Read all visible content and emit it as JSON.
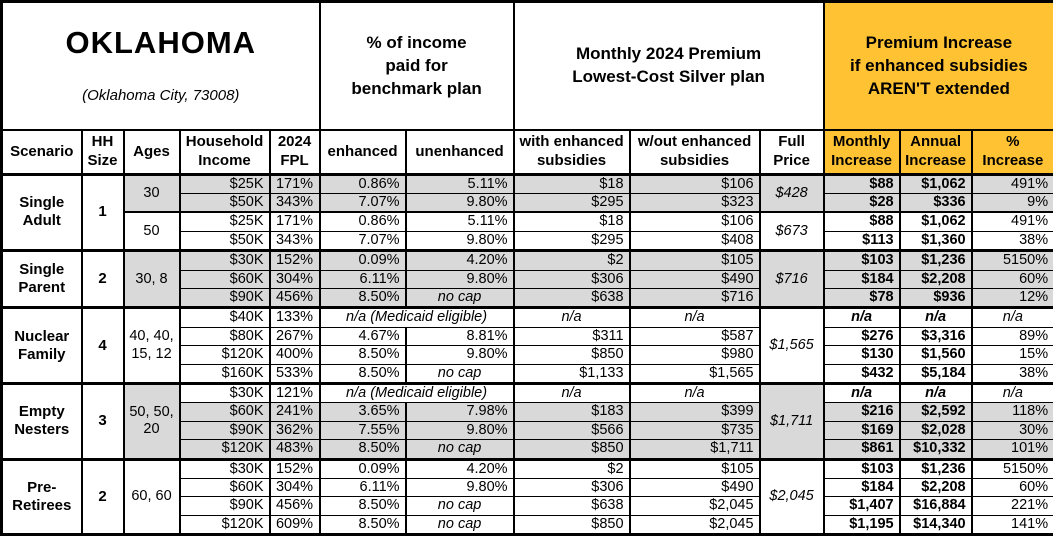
{
  "title": {
    "state": "OKLAHOMA",
    "city": "(Oklahoma City, 73008)"
  },
  "header_groups": {
    "benchmark": [
      "% of income",
      "paid for",
      "benchmark plan"
    ],
    "premium": [
      "Monthly 2024 Premium",
      "Lowest-Cost Silver plan"
    ],
    "increase": [
      "Premium Increase",
      "if enhanced subsidies",
      "AREN'T extended"
    ]
  },
  "columns": [
    "Scenario",
    [
      "HH",
      "Size"
    ],
    "Ages",
    [
      "Household",
      "Income"
    ],
    [
      "2024",
      "FPL"
    ],
    "enhanced",
    "unenhanced",
    [
      "with enhanced",
      "subsidies"
    ],
    [
      "w/out enhanced",
      "subsidies"
    ],
    [
      "Full",
      "Price"
    ],
    [
      "Monthly",
      "Increase"
    ],
    [
      "Annual",
      "Increase"
    ],
    [
      "%",
      "Increase"
    ]
  ],
  "colors": {
    "highlight": "#FFC233",
    "row_shade": "#D9D9D9",
    "border": "#000000",
    "background": "#FFFFFF",
    "text": "#000000"
  },
  "groups": [
    {
      "scenario": "Single Adult",
      "hh_size": "1",
      "age_blocks": [
        {
          "ages": "30",
          "shaded": true,
          "full_price": "$428",
          "rows": [
            {
              "income": "$25K",
              "fpl": "171%",
              "enhanced": "0.86%",
              "unenhanced": "5.11%",
              "with_sub": "$18",
              "without_sub": "$106",
              "monthly": "$88",
              "annual": "$1,062",
              "pct": "491%"
            },
            {
              "income": "$50K",
              "fpl": "343%",
              "enhanced": "7.07%",
              "unenhanced": "9.80%",
              "with_sub": "$295",
              "without_sub": "$323",
              "monthly": "$28",
              "annual": "$336",
              "pct": "9%"
            }
          ]
        },
        {
          "ages": "50",
          "shaded": false,
          "full_price": "$673",
          "rows": [
            {
              "income": "$25K",
              "fpl": "171%",
              "enhanced": "0.86%",
              "unenhanced": "5.11%",
              "with_sub": "$18",
              "without_sub": "$106",
              "monthly": "$88",
              "annual": "$1,062",
              "pct": "491%"
            },
            {
              "income": "$50K",
              "fpl": "343%",
              "enhanced": "7.07%",
              "unenhanced": "9.80%",
              "with_sub": "$295",
              "without_sub": "$408",
              "monthly": "$113",
              "annual": "$1,360",
              "pct": "38%"
            }
          ]
        }
      ]
    },
    {
      "scenario": "Single Parent",
      "hh_size": "2",
      "age_blocks": [
        {
          "ages": "30, 8",
          "shaded": true,
          "full_price": "$716",
          "rows": [
            {
              "income": "$30K",
              "fpl": "152%",
              "enhanced": "0.09%",
              "unenhanced": "4.20%",
              "with_sub": "$2",
              "without_sub": "$105",
              "monthly": "$103",
              "annual": "$1,236",
              "pct": "5150%"
            },
            {
              "income": "$60K",
              "fpl": "304%",
              "enhanced": "6.11%",
              "unenhanced": "9.80%",
              "with_sub": "$306",
              "without_sub": "$490",
              "monthly": "$184",
              "annual": "$2,208",
              "pct": "60%"
            },
            {
              "income": "$90K",
              "fpl": "456%",
              "enhanced": "8.50%",
              "unenhanced": "no cap",
              "with_sub": "$638",
              "without_sub": "$716",
              "monthly": "$78",
              "annual": "$936",
              "pct": "12%"
            }
          ]
        }
      ]
    },
    {
      "scenario": "Nuclear Family",
      "hh_size": "4",
      "age_blocks": [
        {
          "ages": "40, 40, 15, 12",
          "shaded": false,
          "full_price": "$1,565",
          "rows": [
            {
              "income": "$40K",
              "fpl": "133%",
              "medicaid": true,
              "medicaid_label": "n/a (Medicaid eligible)",
              "with_sub": "n/a",
              "without_sub": "n/a",
              "monthly": "n/a",
              "annual": "n/a",
              "pct": "n/a"
            },
            {
              "income": "$80K",
              "fpl": "267%",
              "enhanced": "4.67%",
              "unenhanced": "8.81%",
              "with_sub": "$311",
              "without_sub": "$587",
              "monthly": "$276",
              "annual": "$3,316",
              "pct": "89%"
            },
            {
              "income": "$120K",
              "fpl": "400%",
              "enhanced": "8.50%",
              "unenhanced": "9.80%",
              "with_sub": "$850",
              "without_sub": "$980",
              "monthly": "$130",
              "annual": "$1,560",
              "pct": "15%"
            },
            {
              "income": "$160K",
              "fpl": "533%",
              "enhanced": "8.50%",
              "unenhanced": "no cap",
              "with_sub": "$1,133",
              "without_sub": "$1,565",
              "monthly": "$432",
              "annual": "$5,184",
              "pct": "38%"
            }
          ]
        }
      ]
    },
    {
      "scenario": "Empty Nesters",
      "hh_size": "3",
      "age_blocks": [
        {
          "ages": "50, 50, 20",
          "shaded": true,
          "full_price": "$1,711",
          "rows": [
            {
              "income": "$30K",
              "fpl": "121%",
              "medicaid": true,
              "medicaid_label": "n/a (Medicaid eligible)",
              "with_sub": "n/a",
              "without_sub": "n/a",
              "monthly": "n/a",
              "annual": "n/a",
              "pct": "n/a",
              "unshaded": true
            },
            {
              "income": "$60K",
              "fpl": "241%",
              "enhanced": "3.65%",
              "unenhanced": "7.98%",
              "with_sub": "$183",
              "without_sub": "$399",
              "monthly": "$216",
              "annual": "$2,592",
              "pct": "118%"
            },
            {
              "income": "$90K",
              "fpl": "362%",
              "enhanced": "7.55%",
              "unenhanced": "9.80%",
              "with_sub": "$566",
              "without_sub": "$735",
              "monthly": "$169",
              "annual": "$2,028",
              "pct": "30%"
            },
            {
              "income": "$120K",
              "fpl": "483%",
              "enhanced": "8.50%",
              "unenhanced": "no cap",
              "with_sub": "$850",
              "without_sub": "$1,711",
              "monthly": "$861",
              "annual": "$10,332",
              "pct": "101%"
            }
          ]
        }
      ]
    },
    {
      "scenario": "Pre-Retirees",
      "hh_size": "2",
      "age_blocks": [
        {
          "ages": "60, 60",
          "shaded": false,
          "full_price": "$2,045",
          "rows": [
            {
              "income": "$30K",
              "fpl": "152%",
              "enhanced": "0.09%",
              "unenhanced": "4.20%",
              "with_sub": "$2",
              "without_sub": "$105",
              "monthly": "$103",
              "annual": "$1,236",
              "pct": "5150%"
            },
            {
              "income": "$60K",
              "fpl": "304%",
              "enhanced": "6.11%",
              "unenhanced": "9.80%",
              "with_sub": "$306",
              "without_sub": "$490",
              "monthly": "$184",
              "annual": "$2,208",
              "pct": "60%"
            },
            {
              "income": "$90K",
              "fpl": "456%",
              "enhanced": "8.50%",
              "unenhanced": "no cap",
              "with_sub": "$638",
              "without_sub": "$2,045",
              "monthly": "$1,407",
              "annual": "$16,884",
              "pct": "221%"
            },
            {
              "income": "$120K",
              "fpl": "609%",
              "enhanced": "8.50%",
              "unenhanced": "no cap",
              "with_sub": "$850",
              "without_sub": "$2,045",
              "monthly": "$1,195",
              "annual": "$14,340",
              "pct": "141%"
            }
          ]
        }
      ]
    }
  ]
}
